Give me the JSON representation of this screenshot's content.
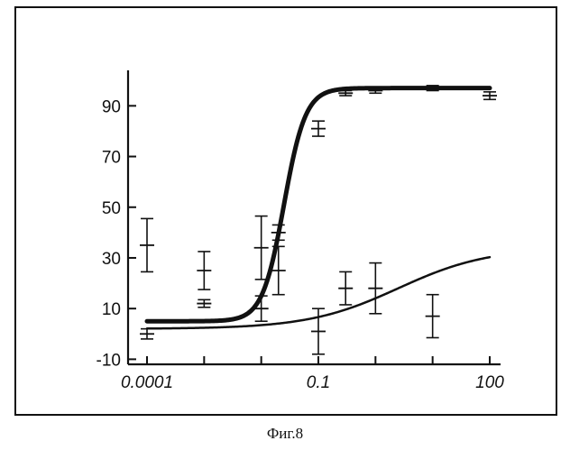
{
  "caption": "Фиг.8",
  "chart_data": {
    "type": "scatter",
    "title": "",
    "xlabel": "",
    "ylabel": "",
    "x_scale": "log",
    "xlim": [
      0.0001,
      100
    ],
    "ylim": [
      -12,
      104
    ],
    "x_ticks": [
      0.0001,
      0.1,
      100
    ],
    "x_tick_labels": [
      "0.0001",
      "0.1",
      "100"
    ],
    "y_ticks": [
      -10,
      10,
      30,
      50,
      70,
      90
    ],
    "y_tick_labels": [
      "-10",
      "10",
      "30",
      "50",
      "70",
      "90"
    ],
    "grid": false,
    "legend": "none",
    "series": [
      {
        "points": [
          {
            "x": 0.0001,
            "y": 0,
            "err": 2
          },
          {
            "x": 0.001,
            "y": 12,
            "err": 1.5
          },
          {
            "x": 0.01,
            "y": 10,
            "err": 5
          },
          {
            "x": 0.02,
            "y": 40,
            "err": 3
          },
          {
            "x": 0.1,
            "y": 81,
            "err": 3
          },
          {
            "x": 0.3,
            "y": 95,
            "err": 1
          },
          {
            "x": 1,
            "y": 96,
            "err": 1
          },
          {
            "x": 10,
            "y": 97,
            "err": 1
          },
          {
            "x": 100,
            "y": 94,
            "err": 1.5
          }
        ],
        "curve": {
          "model": "sigmoid",
          "bottom": 5,
          "top": 97,
          "ec50": 0.025,
          "slope": 2.3
        },
        "line_width": 5
      },
      {
        "points": [
          {
            "x": 0.0001,
            "y": 35,
            "err": 10.5
          },
          {
            "x": 0.001,
            "y": 25,
            "err": 7.5
          },
          {
            "x": 0.01,
            "y": 34,
            "err": 12.5
          },
          {
            "x": 0.02,
            "y": 25,
            "err": 9.5
          },
          {
            "x": 0.1,
            "y": 1,
            "err": 9
          },
          {
            "x": 0.3,
            "y": 18,
            "err": 6.5
          },
          {
            "x": 1,
            "y": 18,
            "err": 10
          },
          {
            "x": 10,
            "y": 7,
            "err": 8.5
          }
        ],
        "curve": {
          "model": "sigmoid",
          "bottom": 2,
          "top": 34,
          "ec50": 2.5,
          "slope": 0.55
        },
        "line_width": 2.5
      }
    ]
  }
}
